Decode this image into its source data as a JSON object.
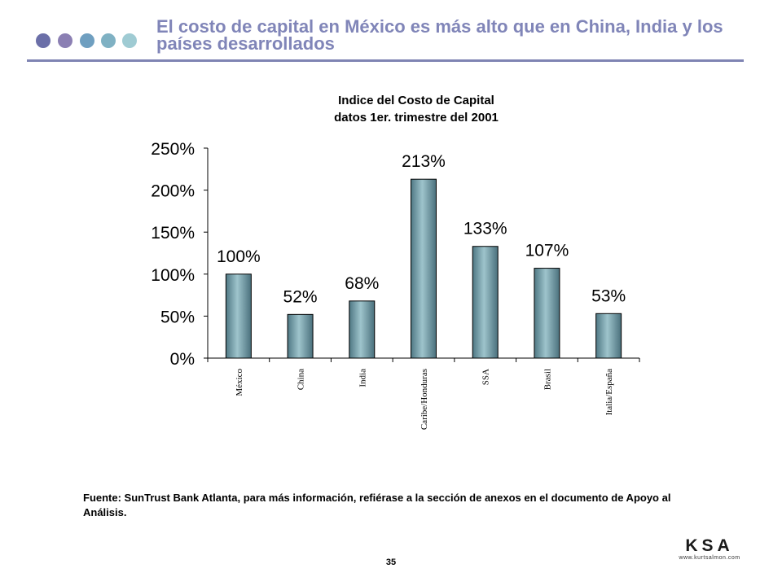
{
  "slide": {
    "title": "El costo de capital en México es más alto que en China, India y los países desarrollados",
    "dot_colors": [
      "#6b6fa8",
      "#8b7fb3",
      "#6f9fc0",
      "#7fb1c3",
      "#9fcbd3"
    ],
    "accent": "#7f84b3",
    "source": "Fuente: SunTrust Bank Atlanta, para más información, refiérase a la sección de anexos en el documento de Apoyo al Análisis.",
    "page_number": "35",
    "brand": {
      "name": "KSA",
      "url": "www.kurtsalmon.com"
    }
  },
  "chart_data": {
    "type": "bar",
    "title": "Indice del Costo de Capital",
    "subtitle": "datos 1er. trimestre del 2001",
    "xlabel": "",
    "ylabel": "",
    "categories": [
      "México",
      "China",
      "India",
      "Caribe/Honduras",
      "SSA",
      "Brasil",
      "Italia/España"
    ],
    "values": [
      100,
      52,
      68,
      213,
      133,
      107,
      53
    ],
    "data_labels": [
      "100%",
      "52%",
      "68%",
      "213%",
      "133%",
      "107%",
      "53%"
    ],
    "ylim": [
      0,
      250
    ],
    "yticks": [
      0,
      50,
      100,
      150,
      200,
      250
    ],
    "ytick_labels": [
      "0%",
      "50%",
      "100%",
      "150%",
      "200%",
      "250%"
    ],
    "grid": false,
    "legend": "none",
    "bar_color": "#6f9aa6"
  }
}
